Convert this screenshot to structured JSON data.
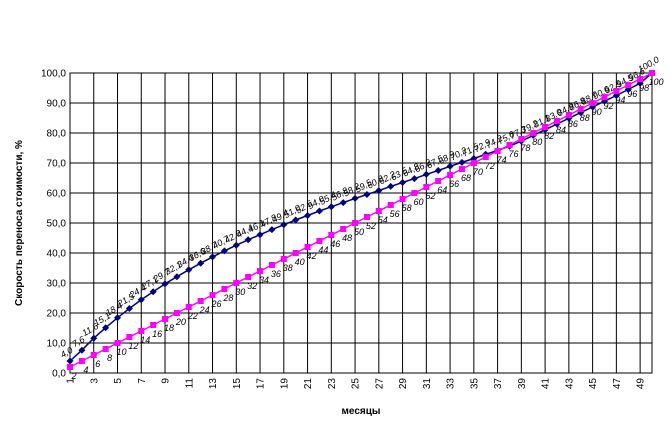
{
  "chart_data": {
    "type": "line",
    "y_label": "Скорость переноса стоимости, %",
    "x_label": "месяцы",
    "x": [
      1,
      2,
      3,
      4,
      5,
      6,
      7,
      8,
      9,
      10,
      11,
      12,
      13,
      14,
      15,
      16,
      17,
      18,
      19,
      20,
      21,
      22,
      23,
      24,
      25,
      26,
      27,
      28,
      29,
      30,
      31,
      32,
      33,
      34,
      35,
      36,
      37,
      38,
      39,
      40,
      41,
      42,
      43,
      44,
      45,
      46,
      47,
      48,
      49,
      50
    ],
    "xlim": [
      1,
      50
    ],
    "xticks": [
      1,
      3,
      5,
      7,
      9,
      11,
      13,
      15,
      17,
      19,
      21,
      23,
      25,
      27,
      29,
      31,
      33,
      35,
      37,
      39,
      41,
      43,
      45,
      47,
      49
    ],
    "ylim": [
      0,
      100
    ],
    "yticks": [
      {
        "value": 0,
        "label": "0,0"
      },
      {
        "value": 10,
        "label": "10,0"
      },
      {
        "value": 20,
        "label": "20,0"
      },
      {
        "value": 30,
        "label": "30,0"
      },
      {
        "value": 40,
        "label": "40,0"
      },
      {
        "value": 50,
        "label": "50,0"
      },
      {
        "value": 60,
        "label": "60,0"
      },
      {
        "value": 70,
        "label": "70,0"
      },
      {
        "value": 80,
        "label": "80,0"
      },
      {
        "value": 90,
        "label": "90,0"
      },
      {
        "value": 100,
        "label": "100,0"
      }
    ],
    "grid": true,
    "series": [
      {
        "color": "#000080",
        "marker": "diamond",
        "values": [
          4.0,
          7.6,
          11.6,
          15.1,
          18.4,
          21.5,
          24.4,
          27.1,
          29.7,
          32.1,
          34.4,
          36.6,
          38.7,
          40.7,
          42.6,
          44.4,
          46.1,
          47.8,
          49.4,
          51.0,
          52.5,
          54.0,
          55.4,
          56.8,
          58.2,
          59.5,
          60.8,
          62.2,
          63.5,
          64.8,
          66.2,
          67.5,
          68.9,
          70.2,
          71.5,
          72.9,
          74.2,
          75.6,
          77.3,
          79.2,
          81.1,
          83.0,
          84.9,
          86.8,
          88.7,
          90.6,
          92.5,
          94.5,
          96.6,
          100.0
        ],
        "value_labels": [
          "4,0",
          "7,6",
          "11,6",
          "15,1",
          "18,4",
          "21,5",
          "24,4",
          "27,1",
          "29,7",
          "32,1",
          "34,4",
          "36,6",
          "38,7",
          "40,7",
          "42,6",
          "44,4",
          "46,1",
          "47,8",
          "49,4",
          "51,0",
          "52,5",
          "54,0",
          "55,4",
          "56,8",
          "58,2",
          "59,5",
          "60,8",
          "62,2",
          "63,5",
          "64,8",
          "66,2",
          "67,5",
          "68,9",
          "70,2",
          "71,5",
          "72,9",
          "74,2",
          "75,6",
          "77,3",
          "79,2",
          "81,1",
          "83,0",
          "84,9",
          "86,8",
          "88,7",
          "90,6",
          "92,5",
          "94,5",
          "96,6",
          "100,0"
        ]
      },
      {
        "color": "#ff00ff",
        "marker": "square",
        "values": [
          2,
          4,
          6,
          8,
          10,
          12,
          14,
          16,
          18,
          20,
          22,
          24,
          26,
          28,
          30,
          32,
          34,
          36,
          38,
          40,
          42,
          44,
          46,
          48,
          50,
          52,
          54,
          56,
          58,
          60,
          62,
          64,
          66,
          68,
          70,
          72,
          74,
          76,
          78,
          80,
          82,
          84,
          86,
          88,
          90,
          92,
          94,
          96,
          98,
          100
        ]
      }
    ]
  }
}
